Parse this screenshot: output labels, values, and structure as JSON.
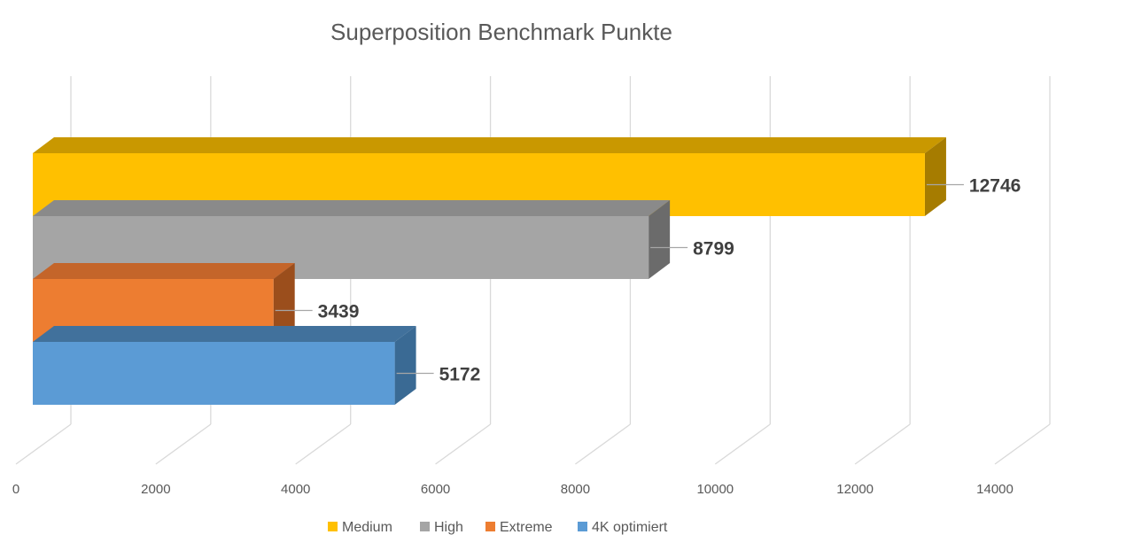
{
  "chart_data": {
    "type": "bar",
    "orientation": "horizontal",
    "style": "3d",
    "title": "Superposition Benchmark Punkte",
    "xlabel": "",
    "ylabel": "",
    "xlim": [
      0,
      14000
    ],
    "ticks": [
      "0",
      "2000",
      "4000",
      "6000",
      "8000",
      "10000",
      "12000",
      "14000"
    ],
    "grid": true,
    "legend_position": "bottom",
    "series": [
      {
        "name": "Medium",
        "value": 12746,
        "label": "12746",
        "color": "#FFC000",
        "side_color": "#A67C00",
        "top_color": "#C99800"
      },
      {
        "name": "High",
        "value": 8799,
        "label": "8799",
        "color": "#A5A5A5",
        "side_color": "#6B6B6B",
        "top_color": "#8A8A8A"
      },
      {
        "name": "Extreme",
        "value": 3439,
        "label": "3439",
        "color": "#ED7D31",
        "side_color": "#9B4E1C",
        "top_color": "#C4652A"
      },
      {
        "name": "4K optimiert",
        "value": 5172,
        "label": "5172",
        "color": "#5B9BD5",
        "side_color": "#3A6A94",
        "top_color": "#41719C"
      }
    ]
  }
}
